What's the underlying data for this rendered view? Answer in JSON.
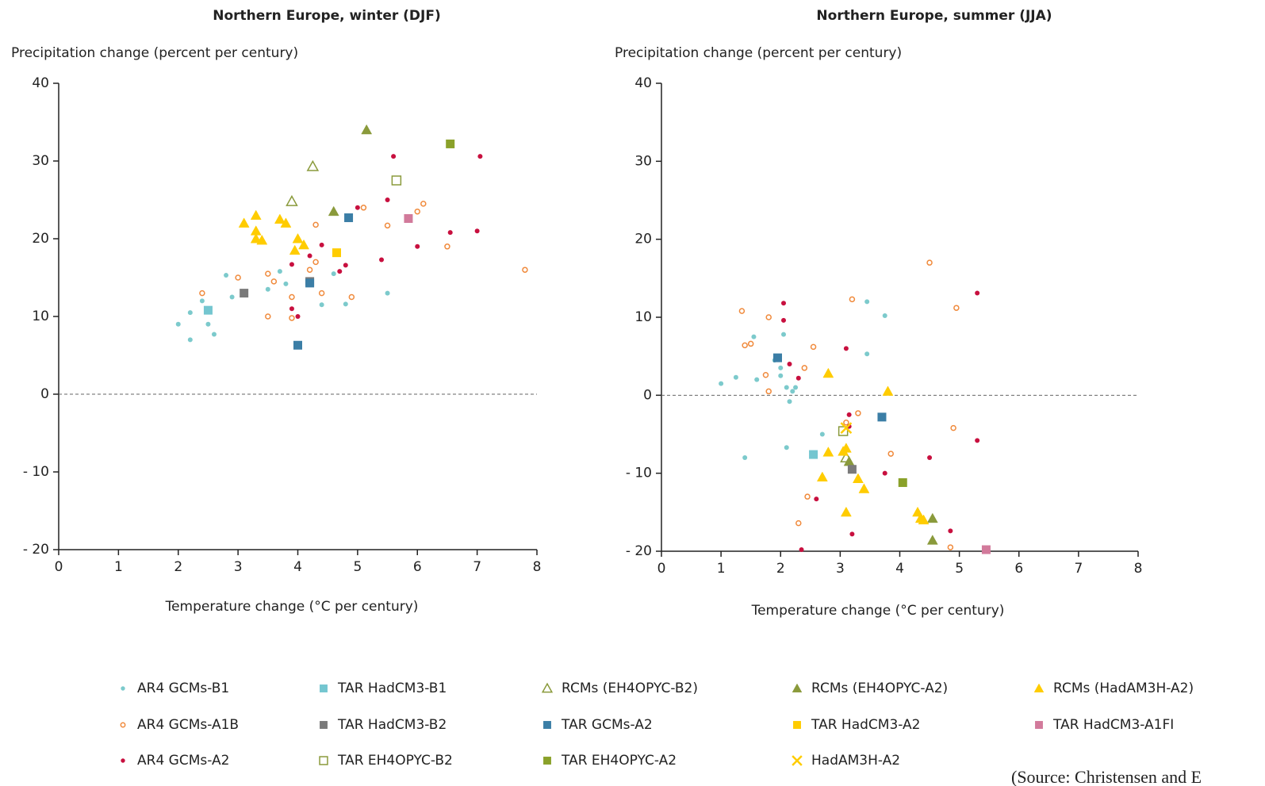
{
  "chart_data": [
    {
      "type": "scatter",
      "title": "Northern Europe, winter (DJF)",
      "y_label": "Precipitation change (percent per century)",
      "x_label": "Temperature change (°C per century)",
      "xlim": [
        0,
        8
      ],
      "ylim": [
        -20,
        40
      ],
      "xticks": [
        0,
        1,
        2,
        3,
        4,
        5,
        6,
        7,
        8
      ],
      "yticks": [
        {
          "value": -20,
          "label": "- 20"
        },
        {
          "value": -10,
          "label": "- 10"
        },
        0,
        10,
        20,
        30,
        40
      ],
      "zero_line": true,
      "series": [
        {
          "name": "AR4 GCMs-B1",
          "color": "#7ccacc",
          "marker": "dot",
          "x": [
            2.0,
            2.2,
            2.2,
            2.4,
            2.5,
            2.6,
            2.8,
            2.9,
            3.5,
            3.8,
            4.4,
            4.6,
            4.8,
            5.5,
            3.7
          ],
          "values": [
            9,
            7,
            10.5,
            12,
            9,
            7.7,
            15.3,
            12.5,
            13.5,
            14.2,
            11.5,
            15.5,
            11.6,
            13,
            15.8
          ]
        },
        {
          "name": "TAR HadCM3-B1",
          "color": "#74c6d0",
          "marker": "square",
          "x": [
            2.5
          ],
          "values": [
            10.8
          ]
        },
        {
          "name": "RCMs (EH4OPYC-B2)",
          "color": "#8a9a3b",
          "marker": "open-triangle",
          "x": [
            3.9,
            4.25
          ],
          "values": [
            24.8,
            29.3
          ]
        },
        {
          "name": "RCMs (EH4OPYC-A2)",
          "color": "#8a9a3b",
          "marker": "triangle",
          "x": [
            5.15,
            4.6
          ],
          "values": [
            34,
            23.5
          ]
        },
        {
          "name": "RCMs (HadAM3H-A2)",
          "color": "#ffcc00",
          "marker": "triangle",
          "x": [
            3.1,
            3.3,
            3.3,
            3.3,
            3.4,
            3.7,
            3.8,
            3.95,
            4.0,
            4.1
          ],
          "values": [
            22,
            23,
            21,
            20,
            19.8,
            22.5,
            22,
            18.5,
            20,
            19.2
          ]
        },
        {
          "name": "AR4 GCMs-A1B",
          "color": "#f08a3c",
          "marker": "open-circle",
          "x": [
            2.4,
            3.0,
            3.5,
            3.5,
            3.6,
            3.9,
            3.9,
            4.2,
            4.3,
            4.3,
            4.4,
            4.9,
            5.1,
            5.5,
            6.0,
            6.1,
            6.5,
            7.8
          ],
          "values": [
            13,
            15,
            15.5,
            10,
            14.5,
            12.5,
            9.8,
            16,
            17,
            21.8,
            13,
            12.5,
            24,
            21.7,
            23.5,
            24.5,
            19,
            16
          ]
        },
        {
          "name": "TAR HadCM3-B2",
          "color": "#7a7a7a",
          "marker": "square",
          "x": [
            3.1,
            4.2
          ],
          "values": [
            13,
            14.5
          ]
        },
        {
          "name": "TAR GCMs-A2",
          "color": "#3b7ea6",
          "marker": "square",
          "x": [
            4.0,
            4.2,
            4.85
          ],
          "values": [
            6.3,
            14.3,
            22.7
          ]
        },
        {
          "name": "TAR HadCM3-A2",
          "color": "#ffcc00",
          "marker": "square",
          "x": [
            4.65
          ],
          "values": [
            18.2
          ]
        },
        {
          "name": "TAR HadCM3-A1FI",
          "color": "#d27a9b",
          "marker": "square",
          "x": [
            5.85
          ],
          "values": [
            22.6
          ]
        },
        {
          "name": "AR4 GCMs-A2",
          "color": "#c8103f",
          "marker": "dot",
          "x": [
            3.9,
            3.9,
            4.0,
            4.2,
            4.4,
            4.7,
            4.8,
            5.0,
            5.4,
            5.5,
            5.6,
            6.0,
            6.55,
            7.0,
            7.05
          ],
          "values": [
            16.7,
            11,
            10,
            17.8,
            19.2,
            15.8,
            16.6,
            24,
            17.3,
            25,
            30.6,
            19,
            20.8,
            21,
            30.6
          ]
        },
        {
          "name": "TAR EH4OPYC-B2",
          "color": "#8a9a3b",
          "marker": "open-square",
          "x": [
            5.65
          ],
          "values": [
            27.5
          ]
        },
        {
          "name": "TAR EH4OPYC-A2",
          "color": "#8aa12a",
          "marker": "square",
          "x": [
            6.55
          ],
          "values": [
            32.2
          ]
        },
        {
          "name": "HadAM3H-A2",
          "color": "#ffcc00",
          "marker": "x",
          "x": [],
          "values": []
        }
      ]
    },
    {
      "type": "scatter",
      "title": "Northern Europe, summer (JJA)",
      "y_label": "Precipitation change (percent per century)",
      "x_label": "Temperature change (°C per century)",
      "xlim": [
        0,
        8
      ],
      "ylim": [
        -20,
        40
      ],
      "xticks": [
        0,
        1,
        2,
        3,
        4,
        5,
        6,
        7,
        8
      ],
      "yticks": [
        {
          "value": -20,
          "label": "- 20"
        },
        {
          "value": -10,
          "label": "- 10"
        },
        0,
        10,
        20,
        30,
        40
      ],
      "zero_line": true,
      "series": [
        {
          "x": [
            1.0,
            1.25,
            1.4,
            1.55,
            1.6,
            1.9,
            2.0,
            2.05,
            2.1,
            2.15,
            2.2,
            2.25,
            2.1,
            2.7,
            3.45,
            3.45,
            3.75,
            2.0
          ],
          "values": [
            1.5,
            2.3,
            -8,
            7.5,
            2,
            4.5,
            3.5,
            7.8,
            1,
            -0.8,
            0.5,
            1,
            -6.7,
            -5,
            12,
            5.3,
            10.2,
            2.5
          ]
        },
        {
          "x": [
            2.55
          ],
          "values": [
            -7.6
          ]
        },
        {
          "x": [
            3.1
          ],
          "values": [
            -8
          ]
        },
        {
          "x": [
            3.15,
            4.55,
            4.55
          ],
          "values": [
            -8.5,
            -15.8,
            -18.6
          ]
        },
        {
          "x": [
            2.8,
            2.8,
            2.7,
            3.05,
            3.1,
            3.1,
            3.3,
            3.4,
            4.3,
            4.35,
            4.4,
            3.8
          ],
          "values": [
            2.8,
            -7.3,
            -10.5,
            -7.2,
            -6.8,
            -15,
            -10.7,
            -12,
            -15,
            -15.8,
            -16,
            0.5
          ]
        },
        {
          "x": [
            1.35,
            1.4,
            1.5,
            1.8,
            1.75,
            1.8,
            2.4,
            2.55,
            2.45,
            2.3,
            3.2,
            3.3,
            3.1,
            3.85,
            4.5,
            4.9,
            4.95,
            4.85
          ],
          "values": [
            10.8,
            6.4,
            6.6,
            10,
            2.6,
            0.5,
            3.5,
            6.2,
            -13,
            -16.4,
            12.3,
            -2.3,
            -3.5,
            -7.5,
            17,
            -4.2,
            11.2,
            -19.5
          ]
        },
        {
          "x": [
            3.2
          ],
          "values": [
            -9.5
          ]
        },
        {
          "x": [
            1.95,
            3.7
          ],
          "values": [
            4.8,
            -2.8
          ]
        },
        {
          "x": [],
          "values": []
        },
        {
          "x": [
            5.45
          ],
          "values": [
            -19.8
          ]
        },
        {
          "x": [
            2.05,
            2.05,
            2.15,
            2.3,
            2.35,
            2.6,
            3.1,
            3.15,
            3.15,
            3.2,
            3.75,
            4.5,
            4.85,
            5.3,
            5.3
          ],
          "values": [
            11.8,
            9.6,
            4,
            2.2,
            -19.8,
            -13.3,
            6,
            -4,
            -2.5,
            -17.8,
            -10,
            -8,
            -17.4,
            13.1,
            -5.8
          ]
        },
        {
          "x": [
            3.05
          ],
          "values": [
            -4.6
          ]
        },
        {
          "x": [
            4.05
          ],
          "values": [
            -11.2
          ]
        },
        {
          "x": [
            3.1
          ],
          "values": [
            -4.2
          ]
        }
      ]
    }
  ],
  "source": "(Source: Christensen and E"
}
